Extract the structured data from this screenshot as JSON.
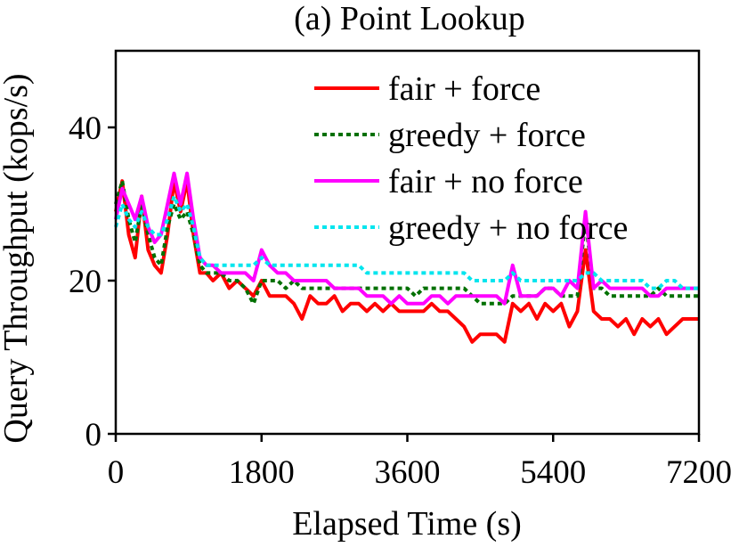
{
  "chart_data": {
    "type": "line",
    "title": "(a) Point Lookup",
    "xlabel": "Elapsed Time (s)",
    "ylabel": "Query Throughput (kops/s)",
    "xlim": [
      0,
      7200
    ],
    "ylim": [
      0,
      50
    ],
    "xticks": [
      0,
      1800,
      3600,
      5400,
      7200
    ],
    "xtick_labels": [
      "0",
      "1800",
      "3600",
      "5400",
      "7200"
    ],
    "yticks": [
      0,
      20,
      40
    ],
    "ytick_labels": [
      "0",
      "20",
      "40"
    ],
    "grid": false,
    "legend_position": "top-right",
    "series": [
      {
        "name": "fair + force",
        "color": "#ff0000",
        "style": "solid",
        "x": [
          0,
          80,
          160,
          240,
          320,
          400,
          480,
          560,
          640,
          720,
          800,
          880,
          960,
          1040,
          1120,
          1200,
          1300,
          1400,
          1500,
          1600,
          1700,
          1800,
          1900,
          2000,
          2100,
          2200,
          2300,
          2400,
          2500,
          2600,
          2700,
          2800,
          2900,
          3000,
          3100,
          3200,
          3300,
          3400,
          3500,
          3600,
          3700,
          3800,
          3900,
          4000,
          4100,
          4200,
          4300,
          4400,
          4500,
          4600,
          4700,
          4800,
          4900,
          5000,
          5100,
          5200,
          5300,
          5400,
          5500,
          5600,
          5700,
          5800,
          5900,
          6000,
          6100,
          6200,
          6300,
          6400,
          6500,
          6600,
          6700,
          6800,
          6900,
          7000,
          7100,
          7200
        ],
        "y": [
          29,
          33,
          26,
          23,
          31,
          24,
          22,
          21,
          26,
          33,
          29,
          33,
          26,
          21,
          21,
          20,
          21,
          19,
          20,
          19,
          18,
          20,
          18,
          18,
          18,
          17,
          15,
          18,
          17,
          17,
          18,
          16,
          17,
          17,
          16,
          17,
          16,
          17,
          16,
          16,
          16,
          16,
          17,
          16,
          16,
          15,
          14,
          12,
          13,
          13,
          13,
          12,
          17,
          16,
          17,
          15,
          17,
          16,
          17,
          14,
          16,
          24,
          16,
          15,
          15,
          14,
          15,
          13,
          15,
          14,
          15,
          13,
          14,
          15,
          15,
          15
        ]
      },
      {
        "name": "greedy + force",
        "color": "#007000",
        "style": "dotted",
        "x": [
          0,
          80,
          160,
          240,
          320,
          400,
          480,
          560,
          640,
          720,
          800,
          880,
          960,
          1040,
          1120,
          1200,
          1300,
          1400,
          1500,
          1600,
          1700,
          1800,
          1900,
          2000,
          2100,
          2200,
          2300,
          2400,
          2500,
          2600,
          2700,
          2800,
          2900,
          3000,
          3100,
          3200,
          3300,
          3400,
          3500,
          3600,
          3700,
          3800,
          3900,
          4000,
          4100,
          4200,
          4300,
          4400,
          4500,
          4600,
          4700,
          4800,
          4900,
          5000,
          5100,
          5200,
          5300,
          5400,
          5500,
          5600,
          5700,
          5800,
          5900,
          6000,
          6100,
          6200,
          6300,
          6400,
          6500,
          6600,
          6700,
          6800,
          6900,
          7000,
          7100,
          7200
        ],
        "y": [
          30,
          33,
          28,
          25,
          30,
          26,
          23,
          22,
          27,
          30,
          28,
          29,
          26,
          22,
          21,
          21,
          21,
          20,
          20,
          19,
          17,
          20,
          20,
          20,
          19,
          20,
          19,
          19,
          19,
          19,
          19,
          19,
          19,
          19,
          19,
          19,
          19,
          19,
          19,
          19,
          18,
          19,
          19,
          19,
          19,
          19,
          19,
          18,
          17,
          17,
          17,
          17,
          18,
          18,
          18,
          18,
          19,
          19,
          18,
          18,
          18,
          28,
          19,
          19,
          18,
          18,
          18,
          18,
          18,
          18,
          19,
          18,
          18,
          18,
          18,
          18
        ]
      },
      {
        "name": "fair + no force",
        "color": "#ff00ff",
        "style": "solid",
        "x": [
          0,
          80,
          160,
          240,
          320,
          400,
          480,
          560,
          640,
          720,
          800,
          880,
          960,
          1040,
          1120,
          1200,
          1300,
          1400,
          1500,
          1600,
          1700,
          1800,
          1900,
          2000,
          2100,
          2200,
          2300,
          2400,
          2500,
          2600,
          2700,
          2800,
          2900,
          3000,
          3100,
          3200,
          3300,
          3400,
          3500,
          3600,
          3700,
          3800,
          3900,
          4000,
          4100,
          4200,
          4300,
          4400,
          4500,
          4600,
          4700,
          4800,
          4900,
          5000,
          5100,
          5200,
          5300,
          5400,
          5500,
          5600,
          5700,
          5800,
          5900,
          6000,
          6100,
          6200,
          6300,
          6400,
          6500,
          6600,
          6700,
          6800,
          6900,
          7000,
          7100,
          7200
        ],
        "y": [
          28,
          32,
          30,
          28,
          31,
          27,
          25,
          26,
          30,
          34,
          30,
          34,
          28,
          23,
          22,
          22,
          21,
          21,
          21,
          21,
          20,
          24,
          22,
          21,
          21,
          20,
          20,
          20,
          20,
          20,
          19,
          19,
          19,
          19,
          18,
          18,
          18,
          17,
          18,
          17,
          17,
          17,
          18,
          18,
          17,
          18,
          18,
          18,
          18,
          18,
          18,
          17,
          22,
          18,
          18,
          18,
          19,
          19,
          18,
          20,
          19,
          29,
          19,
          20,
          19,
          19,
          19,
          19,
          19,
          18,
          18,
          19,
          19,
          19,
          19,
          19
        ]
      },
      {
        "name": "greedy + no force",
        "color": "#00e5ee",
        "style": "dotted",
        "x": [
          0,
          80,
          160,
          240,
          320,
          400,
          480,
          560,
          640,
          720,
          800,
          880,
          960,
          1040,
          1120,
          1200,
          1300,
          1400,
          1500,
          1600,
          1700,
          1800,
          1900,
          2000,
          2100,
          2200,
          2300,
          2400,
          2500,
          2600,
          2700,
          2800,
          2900,
          3000,
          3100,
          3200,
          3300,
          3400,
          3500,
          3600,
          3700,
          3800,
          3900,
          4000,
          4100,
          4200,
          4300,
          4400,
          4500,
          4600,
          4700,
          4800,
          4900,
          5000,
          5100,
          5200,
          5300,
          5400,
          5500,
          5600,
          5700,
          5800,
          5900,
          6000,
          6100,
          6200,
          6300,
          6400,
          6500,
          6600,
          6700,
          6800,
          6900,
          7000,
          7100,
          7200
        ],
        "y": [
          27,
          30,
          28,
          27,
          29,
          27,
          26,
          26,
          28,
          31,
          29,
          30,
          27,
          23,
          22,
          22,
          22,
          22,
          22,
          22,
          22,
          23,
          22,
          22,
          22,
          22,
          22,
          22,
          22,
          22,
          22,
          22,
          22,
          22,
          21,
          21,
          21,
          21,
          21,
          21,
          21,
          21,
          21,
          21,
          21,
          21,
          21,
          20,
          20,
          20,
          20,
          20,
          21,
          20,
          20,
          20,
          20,
          20,
          20,
          20,
          20,
          21,
          21,
          20,
          20,
          20,
          20,
          20,
          20,
          19,
          19,
          20,
          20,
          19,
          19,
          19
        ]
      }
    ]
  }
}
